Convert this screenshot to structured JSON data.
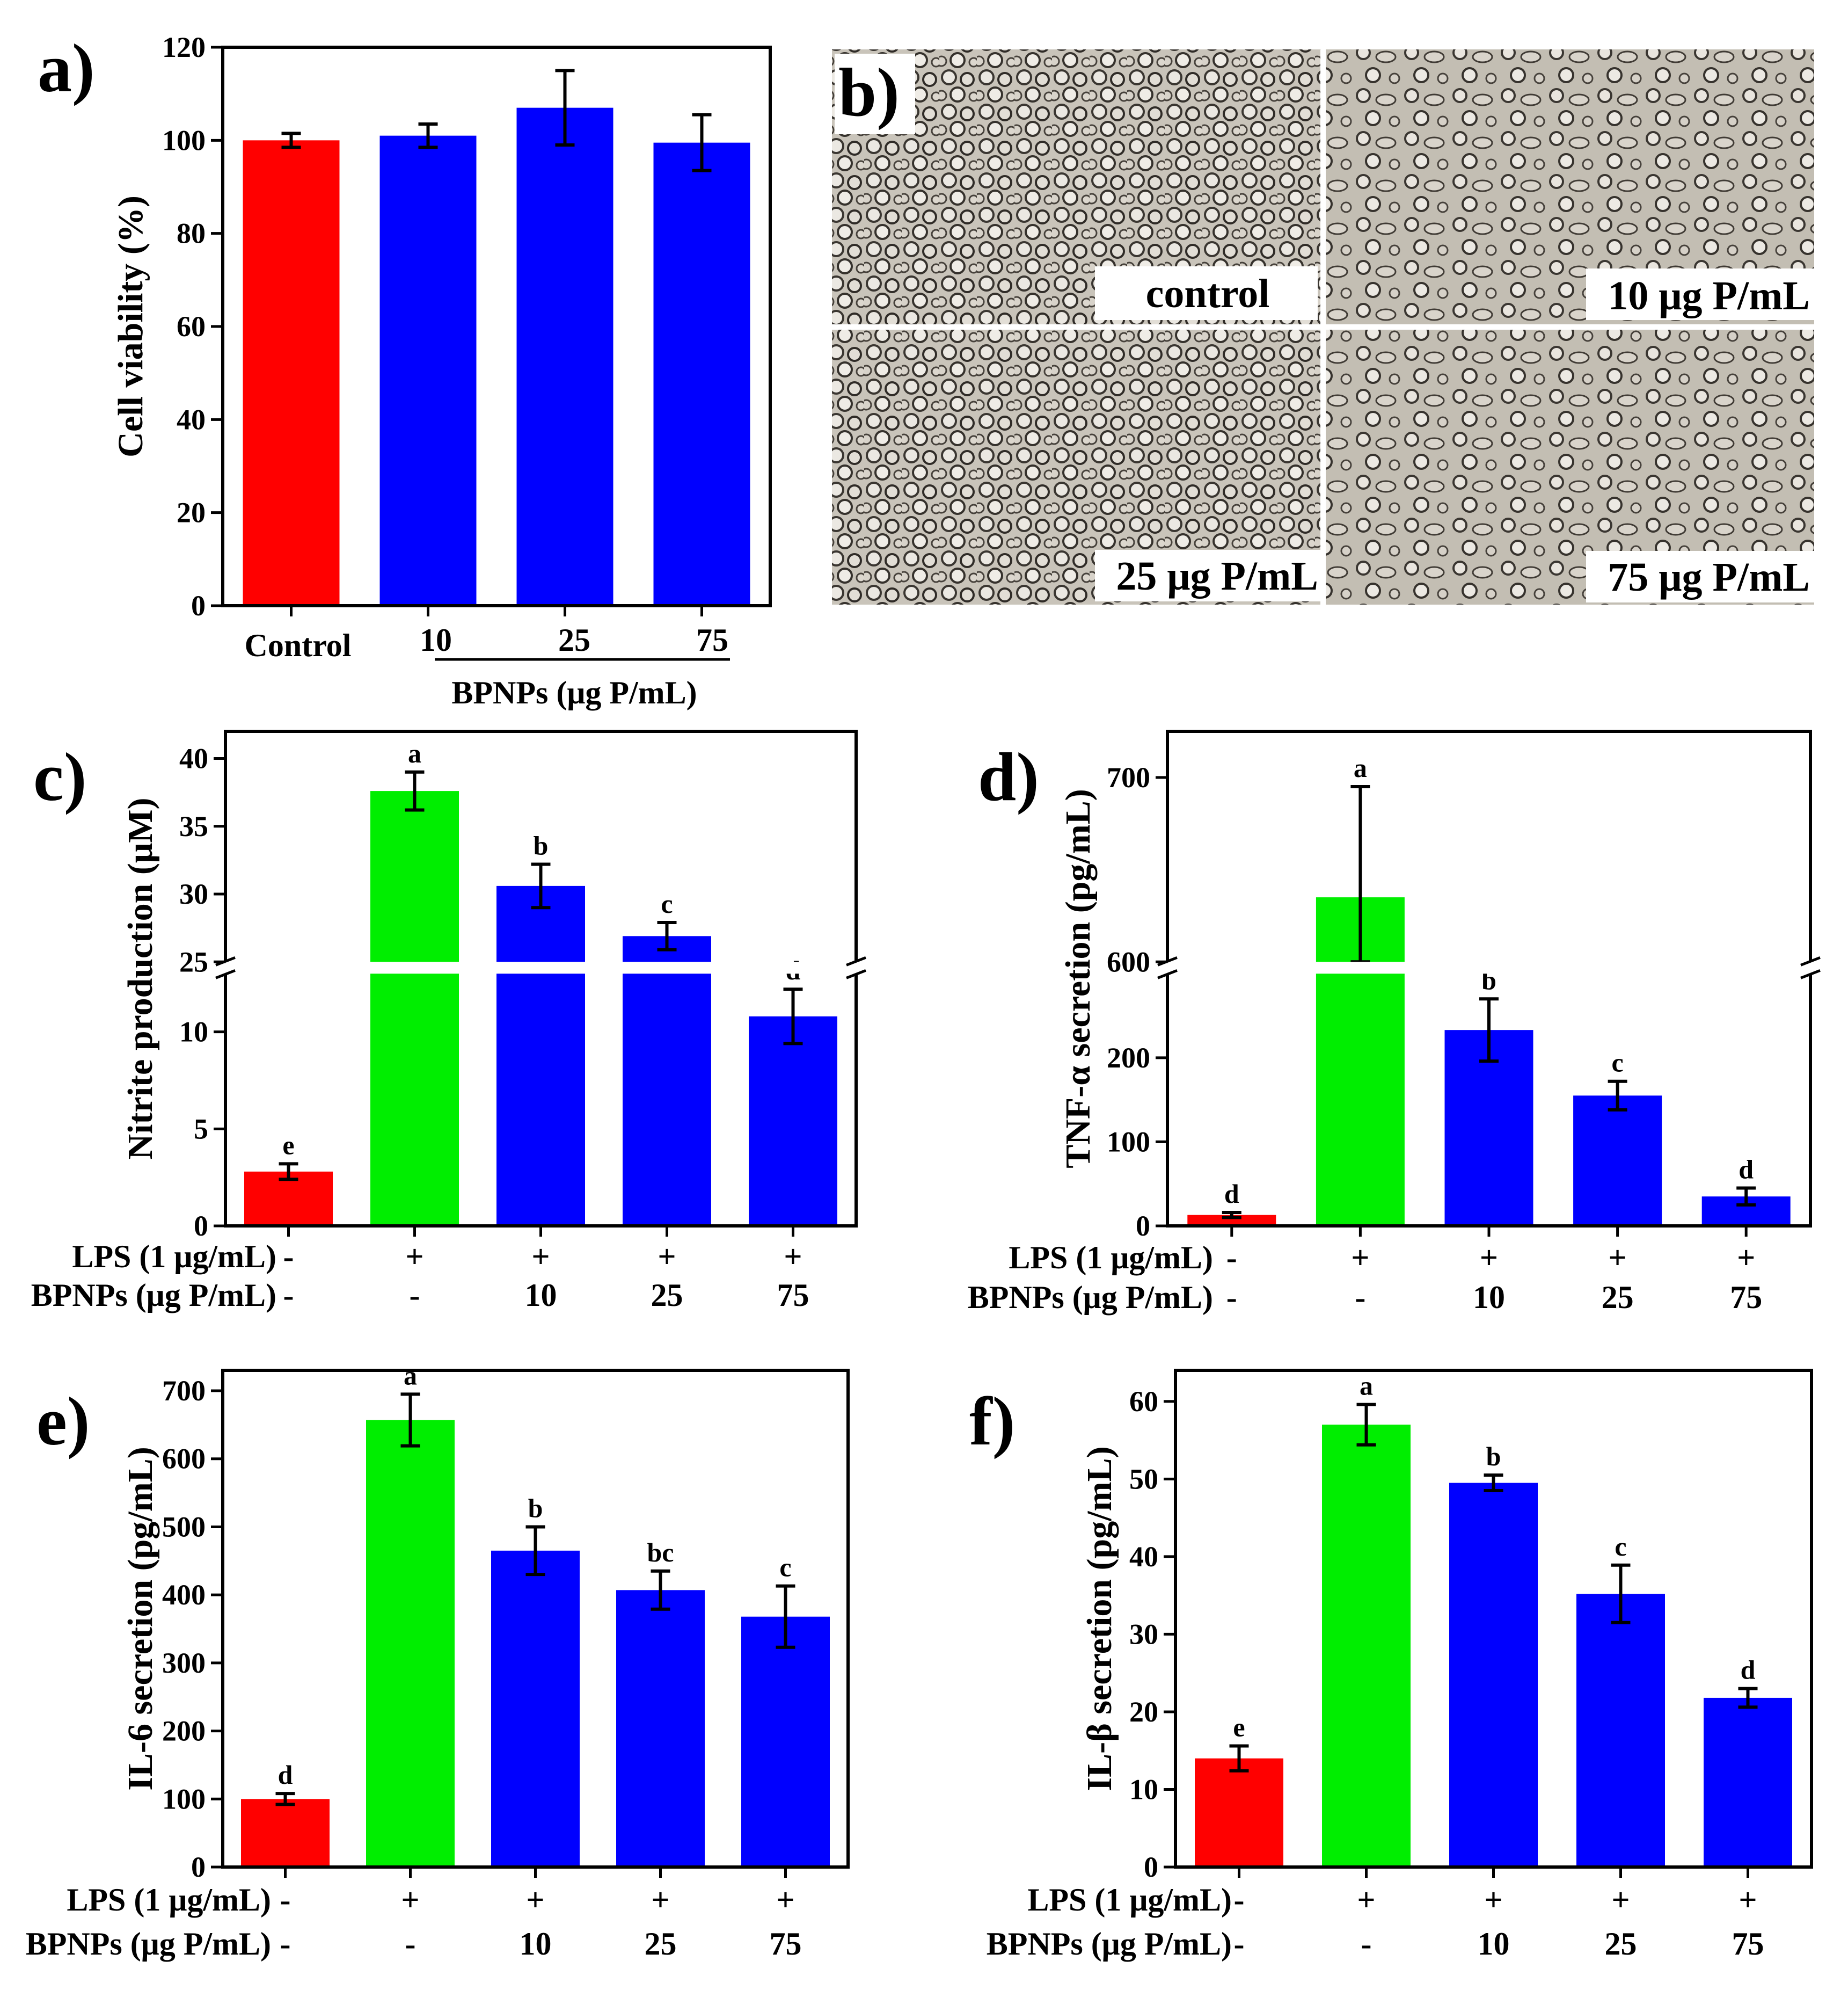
{
  "colors": {
    "control": "#ff0000",
    "lps": "#00ee00",
    "bpnps": "#0000ff",
    "axis": "#000000"
  },
  "panel_letters": [
    "a)",
    "b)",
    "c)",
    "d)",
    "e)",
    "f)"
  ],
  "treatment_rows": {
    "lps_label": "LPS (1 μg/mL)",
    "bpnps_label": "BPNPs (μg P/mL)",
    "lps_values": [
      "-",
      "+",
      "+",
      "+",
      "+"
    ],
    "bpnps_values": [
      "-",
      "-",
      "10",
      "25",
      "75"
    ]
  },
  "panel_b": {
    "labels": [
      "control",
      "10 μg P/mL",
      "25 μg P/mL",
      "75 μg P/mL"
    ]
  },
  "chart_data": [
    {
      "id": "a",
      "type": "bar",
      "categories": [
        "Control",
        "10",
        "25",
        "75"
      ],
      "values": [
        100,
        101,
        107,
        99.5
      ],
      "errors": [
        1.5,
        2.5,
        8,
        6
      ],
      "colors": [
        "#ff0000",
        "#0000ff",
        "#0000ff",
        "#0000ff"
      ],
      "ylabel": "Cell viability (%)",
      "xgroup_label": "BPNPs (μg P/mL)",
      "ylim": [
        0,
        120
      ],
      "yticks": [
        0,
        20,
        40,
        60,
        80,
        100,
        120
      ]
    },
    {
      "id": "c",
      "type": "bar",
      "values": [
        2.8,
        37.6,
        30.6,
        26.9,
        10.8
      ],
      "errors": [
        0.4,
        1.4,
        1.6,
        1.0,
        1.4
      ],
      "letters": [
        "e",
        "a",
        "b",
        "c",
        "d"
      ],
      "colors": [
        "#ff0000",
        "#00ee00",
        "#0000ff",
        "#0000ff",
        "#0000ff"
      ],
      "ylabel": "Nitrite production (μM)",
      "axis_break": {
        "lower": [
          0,
          13
        ],
        "upper": [
          25,
          42
        ]
      },
      "yticks": [
        0,
        5,
        10,
        25,
        30,
        35,
        40
      ]
    },
    {
      "id": "d",
      "type": "bar",
      "values": [
        13,
        635,
        233,
        155,
        35
      ],
      "errors": [
        3,
        60,
        37,
        17,
        10
      ],
      "letters": [
        "d",
        "a",
        "b",
        "c",
        "d"
      ],
      "colors": [
        "#ff0000",
        "#00ee00",
        "#0000ff",
        "#0000ff",
        "#0000ff"
      ],
      "ylabel": "TNF-α secretion (pg/mL)",
      "axis_break": {
        "lower": [
          0,
          300
        ],
        "upper": [
          600,
          725
        ]
      },
      "yticks": [
        0,
        100,
        200,
        600,
        700
      ]
    },
    {
      "id": "e",
      "type": "bar",
      "values": [
        100,
        657,
        465,
        407,
        368
      ],
      "errors": [
        8,
        38,
        35,
        28,
        45
      ],
      "letters": [
        "d",
        "a",
        "b",
        "bc",
        "c"
      ],
      "colors": [
        "#ff0000",
        "#00ee00",
        "#0000ff",
        "#0000ff",
        "#0000ff"
      ],
      "ylabel": "IL-6 secretion (pg/mL)",
      "ylim": [
        0,
        730
      ],
      "yticks": [
        0,
        100,
        200,
        300,
        400,
        500,
        600,
        700
      ]
    },
    {
      "id": "f",
      "type": "bar",
      "values": [
        14,
        57,
        49.5,
        35.2,
        21.8
      ],
      "errors": [
        1.6,
        2.6,
        1.0,
        3.7,
        1.2
      ],
      "letters": [
        "e",
        "a",
        "b",
        "c",
        "d"
      ],
      "colors": [
        "#ff0000",
        "#00ee00",
        "#0000ff",
        "#0000ff",
        "#0000ff"
      ],
      "ylabel": "IL-β secretion (pg/mL)",
      "ylim": [
        0,
        64
      ],
      "yticks": [
        0,
        10,
        20,
        30,
        40,
        50,
        60
      ]
    }
  ]
}
